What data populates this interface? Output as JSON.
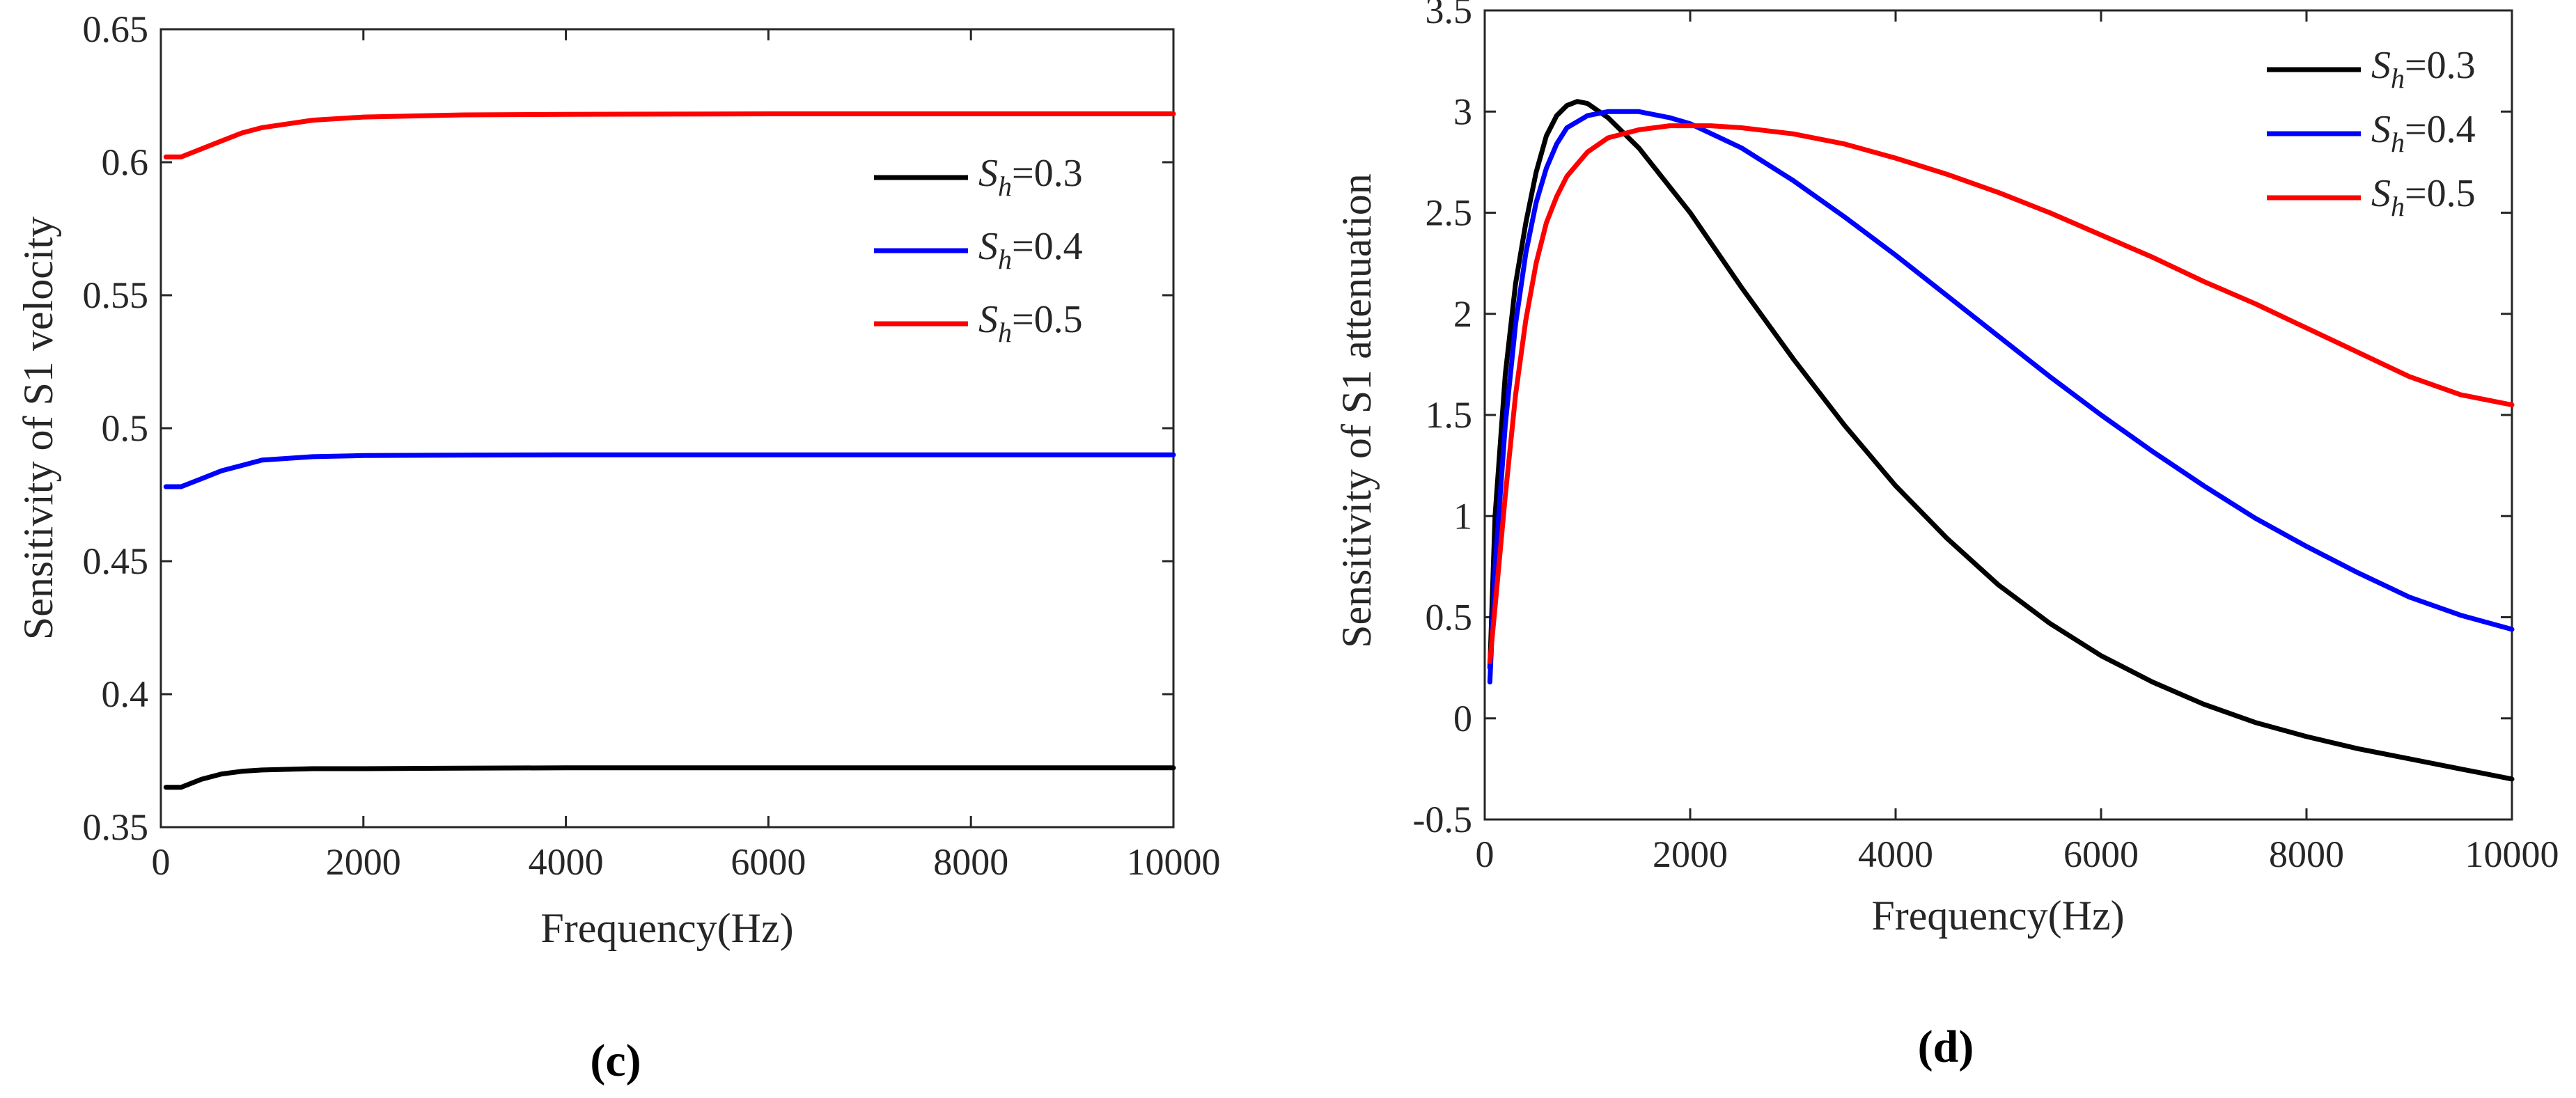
{
  "chart_data": [
    {
      "type": "line",
      "panel_label": "(c)",
      "xlabel": "Frequency(Hz)",
      "ylabel": "Sensitivity of  S1 velocity",
      "xlim": [
        0,
        10000
      ],
      "ylim": [
        0.35,
        0.65
      ],
      "xticks": [
        0,
        2000,
        4000,
        6000,
        8000,
        10000
      ],
      "xtick_labels": [
        "0",
        "2000",
        "4000",
        "6000",
        "8000",
        "10000"
      ],
      "yticks": [
        0.35,
        0.4,
        0.45,
        0.5,
        0.55,
        0.6,
        0.65
      ],
      "ytick_labels": [
        "0.35",
        "0.4",
        "0.45",
        "0.5",
        "0.55",
        "0.6",
        "0.65"
      ],
      "legend_position": "upper-right inside",
      "series": [
        {
          "name": "S_h=0.3",
          "legend_symbol": "S",
          "legend_subscript": "h",
          "legend_value": "=0.3",
          "color": "#000000",
          "x": [
            50,
            200,
            400,
            600,
            800,
            1000,
            1500,
            2000,
            3000,
            4000,
            6000,
            8000,
            10000
          ],
          "y": [
            0.365,
            0.365,
            0.368,
            0.37,
            0.371,
            0.3715,
            0.372,
            0.372,
            0.3722,
            0.3723,
            0.3723,
            0.3723,
            0.3723
          ]
        },
        {
          "name": "S_h=0.4",
          "legend_symbol": "S",
          "legend_subscript": "h",
          "legend_value": "=0.4",
          "color": "#0000ff",
          "x": [
            50,
            200,
            400,
            600,
            800,
            1000,
            1500,
            2000,
            3000,
            4000,
            6000,
            8000,
            10000
          ],
          "y": [
            0.478,
            0.478,
            0.481,
            0.484,
            0.486,
            0.488,
            0.4893,
            0.4897,
            0.4899,
            0.49,
            0.49,
            0.49,
            0.49
          ]
        },
        {
          "name": "S_h=0.5",
          "legend_symbol": "S",
          "legend_subscript": "h",
          "legend_value": "=0.5",
          "color": "#ff0000",
          "x": [
            50,
            200,
            400,
            600,
            800,
            1000,
            1500,
            2000,
            3000,
            4000,
            6000,
            8000,
            10000
          ],
          "y": [
            0.602,
            0.602,
            0.605,
            0.608,
            0.611,
            0.613,
            0.6158,
            0.617,
            0.6178,
            0.618,
            0.6182,
            0.6182,
            0.6182
          ]
        }
      ]
    },
    {
      "type": "line",
      "panel_label": "(d)",
      "xlabel": "Frequency(Hz)",
      "ylabel": "Sensitivity of  S1 attenuation",
      "xlim": [
        0,
        10000
      ],
      "ylim": [
        -0.5,
        3.5
      ],
      "xticks": [
        0,
        2000,
        4000,
        6000,
        8000,
        10000
      ],
      "xtick_labels": [
        "0",
        "2000",
        "4000",
        "6000",
        "8000",
        "10000"
      ],
      "yticks": [
        -0.5,
        0,
        0.5,
        1,
        1.5,
        2,
        2.5,
        3,
        3.5
      ],
      "ytick_labels": [
        "-0.5",
        "0",
        "0.5",
        "1",
        "1.5",
        "2",
        "2.5",
        "3",
        "3.5"
      ],
      "legend_position": "upper-right inside",
      "series": [
        {
          "name": "S_h=0.3",
          "legend_symbol": "S",
          "legend_subscript": "h",
          "legend_value": "=0.3",
          "color": "#000000",
          "x": [
            50,
            100,
            200,
            300,
            400,
            500,
            600,
            700,
            800,
            900,
            1000,
            1200,
            1500,
            2000,
            2500,
            3000,
            3500,
            4000,
            4500,
            5000,
            5500,
            6000,
            6500,
            7000,
            7500,
            8000,
            8500,
            9000,
            9500,
            10000
          ],
          "y": [
            0.25,
            1.0,
            1.7,
            2.15,
            2.45,
            2.7,
            2.88,
            2.98,
            3.03,
            3.05,
            3.04,
            2.97,
            2.82,
            2.5,
            2.13,
            1.78,
            1.45,
            1.15,
            0.89,
            0.66,
            0.47,
            0.31,
            0.18,
            0.07,
            -0.02,
            -0.09,
            -0.15,
            -0.2,
            -0.25,
            -0.3
          ]
        },
        {
          "name": "S_h=0.4",
          "legend_symbol": "S",
          "legend_subscript": "h",
          "legend_value": "=0.4",
          "color": "#0000ff",
          "x": [
            50,
            100,
            200,
            300,
            400,
            500,
            600,
            700,
            800,
            1000,
            1200,
            1500,
            1800,
            2000,
            2500,
            3000,
            3500,
            4000,
            4500,
            5000,
            5500,
            6000,
            6500,
            7000,
            7500,
            8000,
            8500,
            9000,
            9500,
            10000
          ],
          "y": [
            0.18,
            0.75,
            1.45,
            1.95,
            2.3,
            2.55,
            2.72,
            2.84,
            2.92,
            2.98,
            3.0,
            3.0,
            2.97,
            2.94,
            2.82,
            2.66,
            2.48,
            2.29,
            2.09,
            1.89,
            1.69,
            1.5,
            1.32,
            1.15,
            0.99,
            0.85,
            0.72,
            0.6,
            0.51,
            0.44
          ]
        },
        {
          "name": "S_h=0.5",
          "legend_symbol": "S",
          "legend_subscript": "h",
          "legend_value": "=0.5",
          "color": "#ff0000",
          "x": [
            50,
            100,
            200,
            300,
            400,
            500,
            600,
            700,
            800,
            1000,
            1200,
            1500,
            1800,
            2000,
            2200,
            2500,
            3000,
            3500,
            4000,
            4500,
            5000,
            5500,
            6000,
            6500,
            7000,
            7500,
            8000,
            8500,
            9000,
            9500,
            10000
          ],
          "y": [
            0.28,
            0.55,
            1.1,
            1.6,
            1.97,
            2.25,
            2.45,
            2.58,
            2.68,
            2.8,
            2.87,
            2.91,
            2.93,
            2.93,
            2.93,
            2.92,
            2.89,
            2.84,
            2.77,
            2.69,
            2.6,
            2.5,
            2.39,
            2.28,
            2.16,
            2.05,
            1.93,
            1.81,
            1.69,
            1.6,
            1.55
          ]
        }
      ]
    }
  ]
}
